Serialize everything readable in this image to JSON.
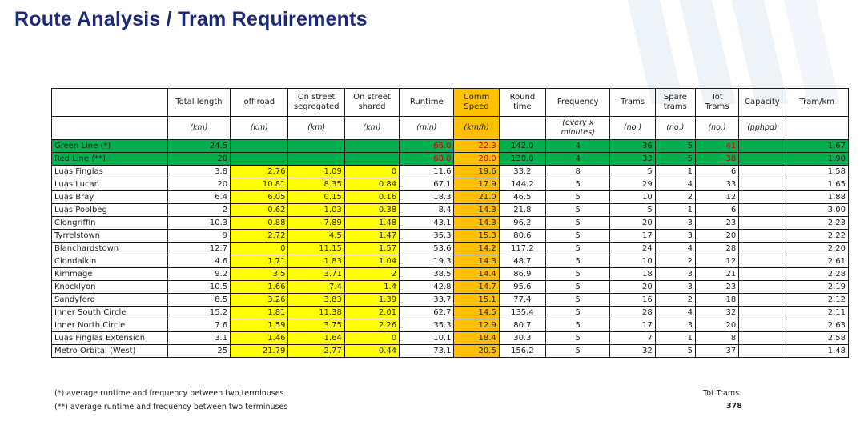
{
  "title": "Route Analysis / Tram Requirements",
  "headers": [
    {
      "label": "",
      "unit": ""
    },
    {
      "label": "Total length",
      "unit": "(km)"
    },
    {
      "label": "off road",
      "unit": "(km)"
    },
    {
      "label": "On street segregated",
      "unit": "(km)"
    },
    {
      "label": "On street shared",
      "unit": "(km)"
    },
    {
      "label": "Runtime",
      "unit": "(min)"
    },
    {
      "label": "Comm Speed",
      "unit": "(km/h)"
    },
    {
      "label": "Round time",
      "unit": ""
    },
    {
      "label": "Frequency",
      "unit": "(every x minutes)"
    },
    {
      "label": "Trams",
      "unit": "(no.)"
    },
    {
      "label": "Spare trams",
      "unit": "(no.)"
    },
    {
      "label": "Tot Trams",
      "unit": "(no.)"
    },
    {
      "label": "Capacity",
      "unit": "(pphpd)"
    },
    {
      "label": "Tram/km",
      "unit": ""
    }
  ],
  "rows": [
    [
      "Green Line (*)",
      "24.5",
      "",
      "",
      "",
      "66.0",
      "22.3",
      "142.0",
      "4",
      "36",
      "5",
      "41",
      "",
      "1.67"
    ],
    [
      "Red Line (**)",
      "20",
      "",
      "",
      "",
      "60.0",
      "20.0",
      "130.0",
      "4",
      "33",
      "5",
      "38",
      "",
      "1.90"
    ],
    [
      "Luas Finglas",
      "3.8",
      "2.76",
      "1.09",
      "0",
      "11.6",
      "19.6",
      "33.2",
      "8",
      "5",
      "1",
      "6",
      "",
      "1.58"
    ],
    [
      "Luas Lucan",
      "20",
      "10.81",
      "8.35",
      "0.84",
      "67.1",
      "17.9",
      "144.2",
      "5",
      "29",
      "4",
      "33",
      "",
      "1.65"
    ],
    [
      "Luas Bray",
      "6.4",
      "6.05",
      "0.15",
      "0.16",
      "18.3",
      "21.0",
      "46.5",
      "5",
      "10",
      "2",
      "12",
      "",
      "1.88"
    ],
    [
      "Luas Poolbeg",
      "2",
      "0.62",
      "1.03",
      "0.38",
      "8.4",
      "14.3",
      "21.8",
      "5",
      "5",
      "1",
      "6",
      "",
      "3.00"
    ],
    [
      "Clongriffin",
      "10.3",
      "0.88",
      "7.89",
      "1.48",
      "43.1",
      "14.3",
      "96.2",
      "5",
      "20",
      "3",
      "23",
      "",
      "2.23"
    ],
    [
      "Tyrrelstown",
      "9",
      "2.72",
      "4.5",
      "1.47",
      "35.3",
      "15.3",
      "80.6",
      "5",
      "17",
      "3",
      "20",
      "",
      "2.22"
    ],
    [
      "Blanchardstown",
      "12.7",
      "0",
      "11.15",
      "1.57",
      "53.6",
      "14.2",
      "117.2",
      "5",
      "24",
      "4",
      "28",
      "",
      "2.20"
    ],
    [
      "Clondalkin",
      "4.6",
      "1.71",
      "1.83",
      "1.04",
      "19.3",
      "14.3",
      "48.7",
      "5",
      "10",
      "2",
      "12",
      "",
      "2.61"
    ],
    [
      "Kimmage",
      "9.2",
      "3.5",
      "3.71",
      "2",
      "38.5",
      "14.4",
      "86.9",
      "5",
      "18",
      "3",
      "21",
      "",
      "2.28"
    ],
    [
      "Knocklyon",
      "10.5",
      "1.66",
      "7.4",
      "1.4",
      "42.8",
      "14.7",
      "95.6",
      "5",
      "20",
      "3",
      "23",
      "",
      "2.19"
    ],
    [
      "Sandyford",
      "8.5",
      "3.26",
      "3.83",
      "1.39",
      "33.7",
      "15.1",
      "77.4",
      "5",
      "16",
      "2",
      "18",
      "",
      "2.12"
    ],
    [
      "Inner South Circle",
      "15.2",
      "1.81",
      "11.38",
      "2.01",
      "62.7",
      "14.5",
      "135.4",
      "5",
      "28",
      "4",
      "32",
      "",
      "2.11"
    ],
    [
      "Inner North Circle",
      "7.6",
      "1.59",
      "3.75",
      "2.26",
      "35.3",
      "12.9",
      "80.7",
      "5",
      "17",
      "3",
      "20",
      "",
      "2.63"
    ],
    [
      "Luas Finglas Extension",
      "3.1",
      "1.46",
      "1.64",
      "0",
      "10.1",
      "18.4",
      "30.3",
      "5",
      "7",
      "1",
      "8",
      "",
      "2.58"
    ],
    [
      "Metro Orbital (West)",
      "25",
      "21.79",
      "2.77",
      "0.44",
      "73.1",
      "20.5",
      "156.2",
      "5",
      "32",
      "5",
      "37",
      "",
      "1.48"
    ]
  ],
  "footnotes": {
    "note1": "(*) average runtime and frequency between two terminuses",
    "note2": "(**) average runtime and frequency between two terminuses"
  },
  "total": {
    "label": "Tot Trams",
    "value": "378"
  },
  "colors": {
    "title": "#1a2a78",
    "green": "#00b050",
    "yellow": "#ffff00",
    "orange": "#ffc000",
    "red_text": "#d00000"
  }
}
